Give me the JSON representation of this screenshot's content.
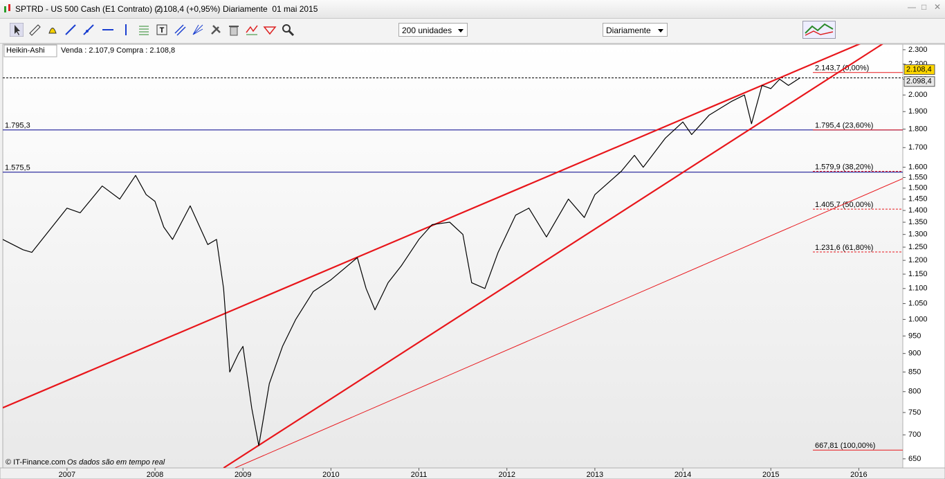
{
  "window": {
    "title": "SPTRD - US 500 Cash (E1 Contrato) (-)",
    "price": "2.108,4 (+0,95%)",
    "period": "Diariamente  01 mai 2015"
  },
  "toolbar": {
    "units": "200 unidades",
    "period": "Diariamente"
  },
  "chart_data": {
    "type": "line",
    "chart_style": "Heikin-Ashi",
    "quote": "Venda : 2.107,9 Compra : 2.108,8",
    "x": [
      2006.27,
      2006.5,
      2006.6,
      2007.0,
      2007.15,
      2007.4,
      2007.6,
      2007.78,
      2007.9,
      2008.0,
      2008.1,
      2008.2,
      2008.4,
      2008.6,
      2008.7,
      2008.78,
      2008.85,
      2008.95,
      2009.0,
      2009.1,
      2009.18,
      2009.3,
      2009.45,
      2009.6,
      2009.8,
      2010.0,
      2010.3,
      2010.4,
      2010.5,
      2010.65,
      2010.8,
      2011.0,
      2011.15,
      2011.35,
      2011.5,
      2011.6,
      2011.75,
      2011.9,
      2012.1,
      2012.25,
      2012.45,
      2012.7,
      2012.88,
      2013.0,
      2013.3,
      2013.45,
      2013.55,
      2013.8,
      2014.0,
      2014.1,
      2014.3,
      2014.55,
      2014.7,
      2014.78,
      2014.9,
      2015.0,
      2015.1,
      2015.2,
      2015.33
    ],
    "series": [
      {
        "color": "#000000",
        "values": [
          1280,
          1240,
          1230,
          1410,
          1390,
          1510,
          1450,
          1560,
          1470,
          1440,
          1330,
          1280,
          1420,
          1260,
          1280,
          1100,
          850,
          900,
          920,
          760,
          677,
          820,
          920,
          1000,
          1090,
          1130,
          1210,
          1100,
          1030,
          1120,
          1180,
          1280,
          1340,
          1350,
          1300,
          1120,
          1100,
          1230,
          1380,
          1410,
          1290,
          1450,
          1370,
          1470,
          1580,
          1660,
          1600,
          1750,
          1840,
          1770,
          1880,
          1960,
          2000,
          1830,
          2060,
          2040,
          2100,
          2060,
          2108
        ]
      }
    ],
    "xlim": [
      2006.27,
      2016.5
    ],
    "xticks": [
      2007,
      2008,
      2009,
      2010,
      2011,
      2012,
      2013,
      2014,
      2015,
      2016
    ],
    "ylim": [
      632,
      2339
    ],
    "log_y": true,
    "yticks": [
      {
        "value": 2300,
        "label": "2.300"
      },
      {
        "value": 2200,
        "label": "2.200"
      },
      {
        "value": 2100,
        "label": "2.100"
      },
      {
        "value": 2000,
        "label": "2.000"
      },
      {
        "value": 1900,
        "label": "1.900"
      },
      {
        "value": 1800,
        "label": "1.800"
      },
      {
        "value": 1700,
        "label": "1.700"
      },
      {
        "value": 1600,
        "label": "1.600"
      },
      {
        "value": 1550,
        "label": "1.550"
      },
      {
        "value": 1500,
        "label": "1.500"
      },
      {
        "value": 1450,
        "label": "1.450"
      },
      {
        "value": 1400,
        "label": "1.400"
      },
      {
        "value": 1350,
        "label": "1.350"
      },
      {
        "value": 1300,
        "label": "1.300"
      },
      {
        "value": 1250,
        "label": "1.250"
      },
      {
        "value": 1200,
        "label": "1.200"
      },
      {
        "value": 1150,
        "label": "1.150"
      },
      {
        "value": 1100,
        "label": "1.100"
      },
      {
        "value": 1050,
        "label": "1.050"
      },
      {
        "value": 1000,
        "label": "1.000"
      },
      950,
      900,
      850,
      800,
      750,
      700,
      650
    ],
    "current_price": {
      "value": 2108.4,
      "label": "2.108,4"
    },
    "second_price": {
      "value": 2098.4,
      "label": "2.098,4"
    },
    "trendlines": [
      {
        "color": "#e8161b",
        "x": [
          2006.27,
          2016.04
        ],
        "y": [
          761,
          2350
        ]
      },
      {
        "color": "#e8161b",
        "x": [
          2008.78,
          2016.29
        ],
        "y": [
          632,
          2350
        ]
      },
      {
        "color": "#e8161b",
        "x": [
          2008.91,
          2016.5
        ],
        "y": [
          632,
          1545
        ]
      }
    ],
    "levels": [
      {
        "value": 1795.3,
        "label": "1.795,3",
        "color": "#00008b"
      },
      {
        "value": 1575.5,
        "label": "1.575,5",
        "color": "#00008b"
      }
    ],
    "fib_levels": [
      {
        "value": 2143.7,
        "label": "2.143,7 (0,00%)",
        "style": "solid"
      },
      {
        "value": 1795.4,
        "label": "1.795,4 (23,60%)",
        "style": "solid"
      },
      {
        "value": 1579.9,
        "label": "1.579,9 (38,20%)",
        "style": "dashed"
      },
      {
        "value": 1405.7,
        "label": "1.405,7 (50,00%)",
        "style": "dashed"
      },
      {
        "value": 1231.6,
        "label": "1.231,6 (61,80%)",
        "style": "dashed"
      },
      {
        "value": 667.81,
        "label": "667,81 (100,00%)",
        "style": "solid"
      }
    ]
  },
  "footer": {
    "copyright": "© IT-Finance.com",
    "note": "Os dados são em tempo real"
  }
}
